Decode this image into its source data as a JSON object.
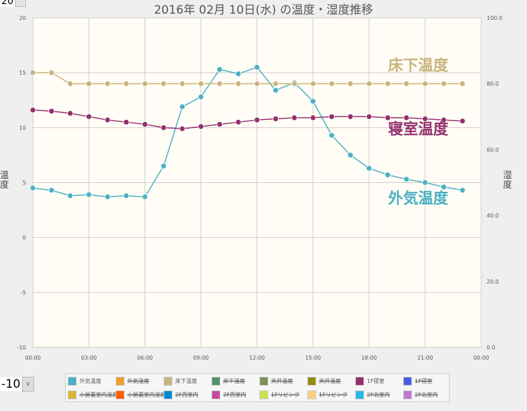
{
  "title": "2016年 02月 10日(水) の温度・湿度推移",
  "top_value": "20",
  "range_select": {
    "value": "-10"
  },
  "chart_data": {
    "type": "line",
    "title": "2016年 02月 10日(水) の温度・湿度推移",
    "ylabel": "温度",
    "y2label": "湿度",
    "ylim": [
      -10,
      20
    ],
    "y2lim": [
      0,
      100
    ],
    "yticks": [
      "-10",
      "-5",
      "0",
      "5",
      "10",
      "15",
      "20"
    ],
    "y2ticks": [
      "0.0",
      "20.0",
      "40.0",
      "60.0",
      "80.0",
      "100.0"
    ],
    "xticks": [
      "00:00",
      "03:00",
      "06:00",
      "09:00",
      "12:00",
      "15:00",
      "18:00",
      "21:00",
      "00:00"
    ],
    "x_hours": [
      0,
      1,
      2,
      3,
      4,
      5,
      6,
      7,
      8,
      9,
      10,
      11,
      12,
      13,
      14,
      15,
      16,
      17,
      18,
      19,
      20,
      21,
      22,
      23
    ],
    "grid": true,
    "series": [
      {
        "name": "外気温度",
        "color": "#4bb0c4",
        "label": "外気温度",
        "values": [
          4.5,
          4.3,
          3.8,
          3.9,
          3.7,
          3.8,
          3.7,
          6.5,
          11.9,
          12.8,
          15.3,
          14.9,
          15.5,
          13.4,
          14.1,
          12.4,
          9.3,
          7.5,
          6.3,
          5.7,
          5.3,
          5.0,
          4.6,
          4.3
        ]
      },
      {
        "name": "床下温度",
        "color": "#c8b47e",
        "label": "床下温度",
        "values": [
          15,
          15,
          14,
          14,
          14,
          14,
          14,
          14,
          14,
          14,
          14,
          14,
          14,
          14,
          14,
          14,
          14,
          14,
          14,
          14,
          14,
          14,
          14,
          14
        ]
      },
      {
        "name": "1F寝室",
        "color": "#952f6f",
        "label": "寝室温度",
        "values": [
          11.6,
          11.5,
          11.3,
          11.0,
          10.7,
          10.5,
          10.3,
          10.0,
          9.9,
          10.1,
          10.3,
          10.5,
          10.7,
          10.8,
          10.9,
          10.9,
          11.0,
          11.0,
          11.0,
          10.9,
          10.9,
          10.8,
          10.7,
          10.6
        ]
      }
    ]
  },
  "legend": [
    {
      "label": "外気温度",
      "color": "#4bb0c4",
      "on": true
    },
    {
      "label": "外気湿度",
      "color": "#f0a030",
      "on": false
    },
    {
      "label": "床下温度",
      "color": "#c8b47e",
      "on": true
    },
    {
      "label": "床下湿度",
      "color": "#55906c",
      "on": false
    },
    {
      "label": "天井温度",
      "color": "#80905a",
      "on": false
    },
    {
      "label": "天井湿度",
      "color": "#948c10",
      "on": false
    },
    {
      "label": "1F寝室",
      "color": "#952f6f",
      "on": true
    },
    {
      "label": "1F寝室",
      "color": "#4c5ce0",
      "on": false
    },
    {
      "label": "小屋裏室内温度",
      "color": "#d8b838",
      "on": false
    },
    {
      "label": "小屋裏室内湿度",
      "color": "#ff5a00",
      "on": false
    },
    {
      "label": "2F西室内",
      "color": "#0588d0",
      "on": false
    },
    {
      "label": "2F西室内",
      "color": "#c848a0",
      "on": false
    },
    {
      "label": "1Fリビング",
      "color": "#cce050",
      "on": false
    },
    {
      "label": "1Fリビング",
      "color": "#f8d080",
      "on": false
    },
    {
      "label": "2F北室内",
      "color": "#28b8e8",
      "on": false
    },
    {
      "label": "2F北室内",
      "color": "#c078d0",
      "on": false
    }
  ]
}
